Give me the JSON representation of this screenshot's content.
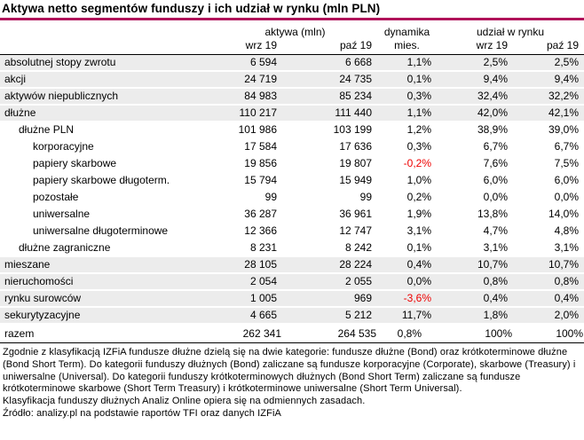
{
  "title": "Aktywa netto segmentów funduszy i ich udział w rynku (mln PLN)",
  "colors": {
    "accent_rule": "#b0135a",
    "shaded_row": "#ececec",
    "negative_value": "#ee0000"
  },
  "chart_data": {
    "type": "table",
    "title": "Aktywa netto segmentów funduszy i ich udział w rynku (mln PLN)",
    "column_groups": {
      "assets": "aktywa (mln)",
      "dynamics": "dynamika",
      "share": "udział w rynku"
    },
    "columns": {
      "assets_prev": "wrz 19",
      "assets_curr": "paź 19",
      "dynamics": "mies.",
      "share_prev": "wrz 19",
      "share_curr": "paź 19"
    },
    "rows": [
      {
        "label": "absolutnej stopy zwrotu",
        "indent": 0,
        "shaded": true,
        "negative": false,
        "values": [
          "6 594",
          "6 668",
          "1,1%",
          "2,5%",
          "2,5%"
        ]
      },
      {
        "label": "akcji",
        "indent": 0,
        "shaded": true,
        "negative": false,
        "values": [
          "24 719",
          "24 735",
          "0,1%",
          "9,4%",
          "9,4%"
        ]
      },
      {
        "label": "aktywów niepublicznych",
        "indent": 0,
        "shaded": true,
        "negative": false,
        "values": [
          "84 983",
          "85 234",
          "0,3%",
          "32,4%",
          "32,2%"
        ]
      },
      {
        "label": "dłużne",
        "indent": 0,
        "shaded": true,
        "negative": false,
        "values": [
          "110 217",
          "111 440",
          "1,1%",
          "42,0%",
          "42,1%"
        ]
      },
      {
        "label": "dłużne PLN",
        "indent": 1,
        "shaded": false,
        "negative": false,
        "values": [
          "101 986",
          "103 199",
          "1,2%",
          "38,9%",
          "39,0%"
        ]
      },
      {
        "label": "korporacyjne",
        "indent": 2,
        "shaded": false,
        "negative": false,
        "values": [
          "17 584",
          "17 636",
          "0,3%",
          "6,7%",
          "6,7%"
        ]
      },
      {
        "label": "papiery skarbowe",
        "indent": 2,
        "shaded": false,
        "negative": true,
        "values": [
          "19 856",
          "19 807",
          "-0,2%",
          "7,6%",
          "7,5%"
        ]
      },
      {
        "label": "papiery skarbowe długoterm.",
        "indent": 2,
        "shaded": false,
        "negative": false,
        "values": [
          "15 794",
          "15 949",
          "1,0%",
          "6,0%",
          "6,0%"
        ]
      },
      {
        "label": "pozostałe",
        "indent": 2,
        "shaded": false,
        "negative": false,
        "values": [
          "99",
          "99",
          "0,2%",
          "0,0%",
          "0,0%"
        ]
      },
      {
        "label": "uniwersalne",
        "indent": 2,
        "shaded": false,
        "negative": false,
        "values": [
          "36 287",
          "36 961",
          "1,9%",
          "13,8%",
          "14,0%"
        ]
      },
      {
        "label": "uniwersalne długoterminowe",
        "indent": 2,
        "shaded": false,
        "negative": false,
        "values": [
          "12 366",
          "12 747",
          "3,1%",
          "4,7%",
          "4,8%"
        ]
      },
      {
        "label": "dłużne zagraniczne",
        "indent": 1,
        "shaded": false,
        "negative": false,
        "values": [
          "8 231",
          "8 242",
          "0,1%",
          "3,1%",
          "3,1%"
        ]
      },
      {
        "label": "mieszane",
        "indent": 0,
        "shaded": true,
        "negative": false,
        "values": [
          "28 105",
          "28 224",
          "0,4%",
          "10,7%",
          "10,7%"
        ]
      },
      {
        "label": "nieruchomości",
        "indent": 0,
        "shaded": true,
        "negative": false,
        "values": [
          "2 054",
          "2 055",
          "0,0%",
          "0,8%",
          "0,8%"
        ]
      },
      {
        "label": "rynku surowców",
        "indent": 0,
        "shaded": true,
        "negative": true,
        "values": [
          "1 005",
          "969",
          "-3,6%",
          "0,4%",
          "0,4%"
        ]
      },
      {
        "label": "sekurytyzacyjne",
        "indent": 0,
        "shaded": true,
        "negative": false,
        "values": [
          "4 665",
          "5 212",
          "11,7%",
          "1,8%",
          "2,0%"
        ]
      }
    ],
    "total": {
      "label": "razem",
      "values": [
        "262 341",
        "264 535",
        "0,8%",
        "100%",
        "100%"
      ]
    }
  },
  "footnotes": [
    "Zgodnie z klasyfikacją IZFiA fundusze dłużne dzielą się na dwie kategorie: fundusze dłużne (Bond) oraz krótkoterminowe dłużne (Bond Short Term). Do kategorii funduszy dłużnych (Bond) zaliczane są fundusze korporacyjne (Corporate), skarbowe (Treasury) i uniwersalne (Universal). Do kategorii funduszy krótkoterminowych dłużnych (Bond Short Term) zaliczane są fundusze krótkoterminowe skarbowe (Short Term Treasury) i krótkoterminowe uniwersalne (Short Term Universal).",
    "Klasyfikacja funduszy dłużnych Analiz Online opiera się na odmiennych zasadach.",
    "Źródło: analizy.pl na podstawie raportów TFI oraz danych IZFiA"
  ]
}
